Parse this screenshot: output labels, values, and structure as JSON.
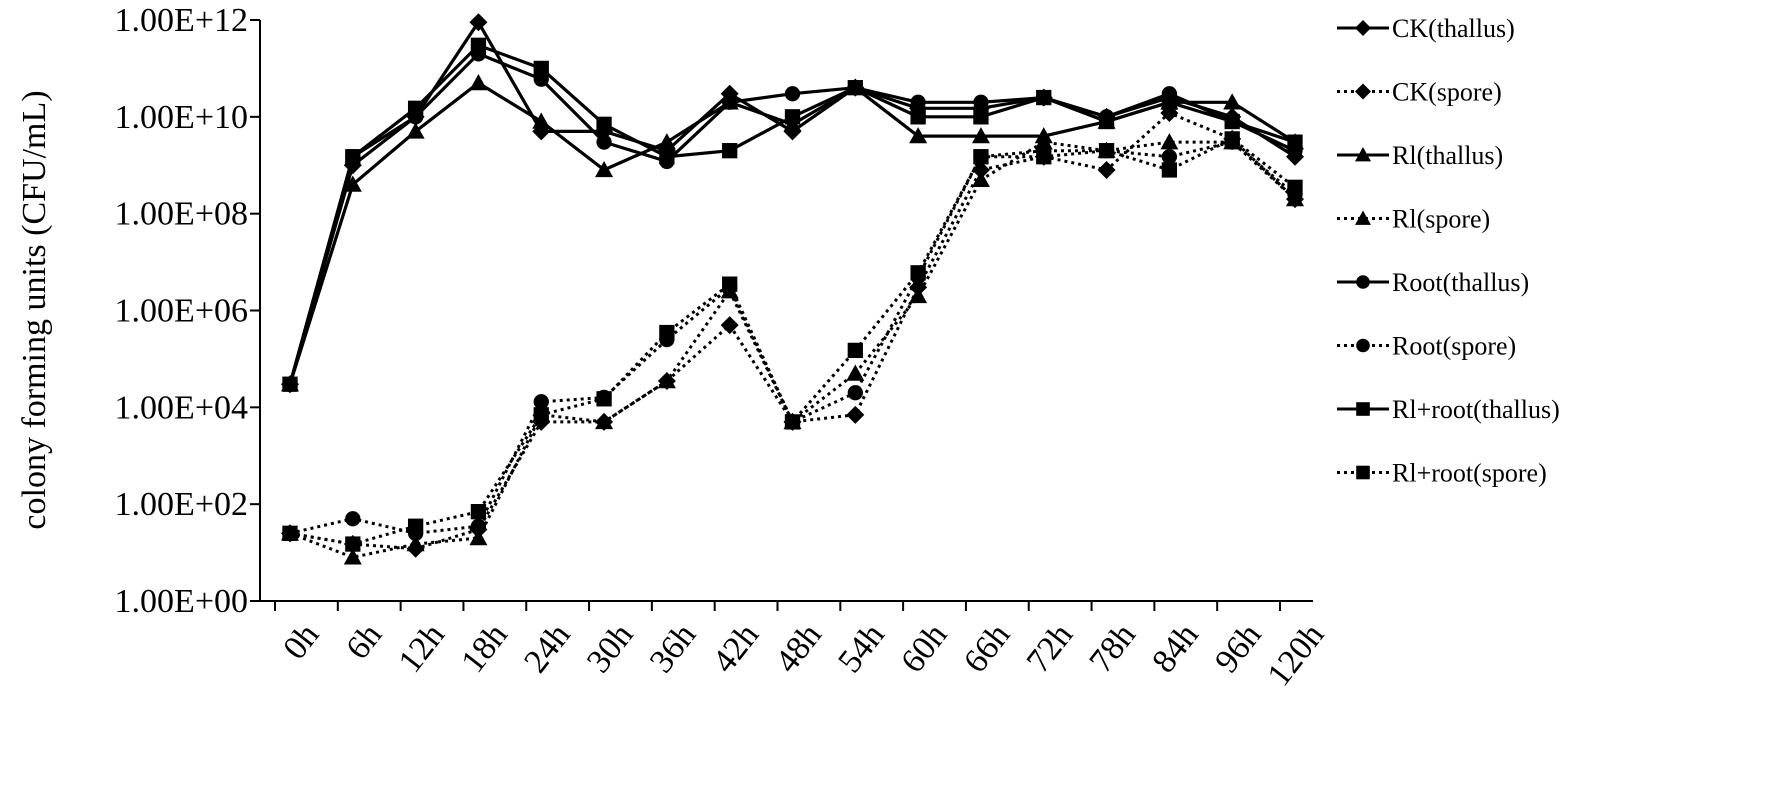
{
  "chart_data": {
    "type": "line",
    "title": "",
    "xlabel": "",
    "ylabel": "colony forming units (CFU/mL)",
    "y_scale": "log",
    "ylim": [
      1,
      1000000000000.0
    ],
    "y_ticks": [
      1,
      100,
      10000,
      1000000,
      100000000,
      10000000000,
      1000000000000
    ],
    "y_tick_labels": [
      "1.00E+00",
      "1.00E+02",
      "1.00E+04",
      "1.00E+06",
      "1.00E+08",
      "1.00E+10",
      "1.00E+12"
    ],
    "categories": [
      "0h",
      "6h",
      "12h",
      "18h",
      "24h",
      "30h",
      "36h",
      "42h",
      "48h",
      "54h",
      "60h",
      "66h",
      "72h",
      "78h",
      "84h",
      "96h",
      "120h"
    ],
    "legend_position": "right",
    "grid": false,
    "series": [
      {
        "name": "CK(thallus)",
        "marker": "diamond",
        "dash": "solid",
        "values": [
          30000,
          1000000000,
          10000000000,
          900000000000,
          5000000000,
          5000000000,
          2000000000,
          30000000000,
          5000000000,
          40000000000,
          15000000000,
          15000000000,
          25000000000,
          10000000000,
          25000000000,
          10000000000,
          1500000000
        ]
      },
      {
        "name": "CK(spore)",
        "marker": "diamond",
        "dash": "dotted",
        "values": [
          25,
          15,
          12,
          30,
          5000,
          5000,
          35000,
          500000,
          5000,
          7000,
          3000000,
          800000000,
          1500000000,
          800000000,
          12000000000,
          3500000000,
          200000000
        ]
      },
      {
        "name": "Rl(thallus)",
        "marker": "triangle",
        "dash": "solid",
        "values": [
          30000,
          400000000,
          5000000000,
          50000000000,
          8000000000,
          800000000,
          3000000000,
          20000000000,
          7000000000,
          40000000000,
          4000000000,
          4000000000,
          4000000000,
          8000000000,
          20000000000,
          20000000000,
          3000000000
        ]
      },
      {
        "name": "Rl(spore)",
        "marker": "triangle",
        "dash": "dotted",
        "values": [
          25,
          8,
          15,
          20,
          7000,
          5000,
          35000,
          2500000,
          5000,
          50000,
          2000000,
          500000000,
          3000000000,
          2000000000,
          3000000000,
          3000000000,
          200000000
        ]
      },
      {
        "name": "Root(thallus)",
        "marker": "circle",
        "dash": "solid",
        "values": [
          30000,
          1500000000,
          10000000000,
          200000000000,
          60000000000,
          3000000000,
          1200000000,
          20000000000,
          30000000000,
          40000000000,
          20000000000,
          20000000000,
          25000000000,
          10000000000,
          30000000000,
          8000000000,
          2000000000
        ]
      },
      {
        "name": "Root(spore)",
        "marker": "circle",
        "dash": "dotted",
        "values": [
          25,
          50,
          25,
          35,
          13000,
          16000,
          250000,
          3000000,
          5000,
          20000,
          5000000,
          1500000000,
          2000000000,
          2000000000,
          1500000000,
          3000000000,
          250000000
        ]
      },
      {
        "name": "Rl+root(thallus)",
        "marker": "square",
        "dash": "solid",
        "values": [
          30000,
          1500000000,
          15000000000,
          300000000000,
          100000000000,
          7000000000,
          1500000000,
          2000000000,
          10000000000,
          40000000000,
          10000000000,
          10000000000,
          25000000000,
          8000000000,
          20000000000,
          8000000000,
          3000000000
        ]
      },
      {
        "name": "Rl+root(spore)",
        "marker": "square",
        "dash": "dotted",
        "values": [
          25,
          15,
          35,
          70,
          7000,
          15000,
          350000,
          3500000,
          5000,
          150000,
          6000000,
          1500000000,
          1500000000,
          2000000000,
          800000000,
          3500000000,
          350000000
        ]
      }
    ]
  }
}
